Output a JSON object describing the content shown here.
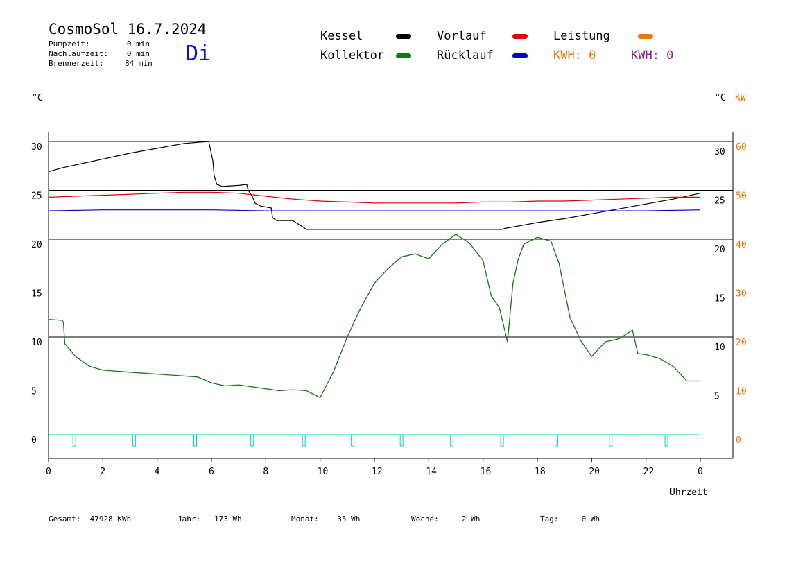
{
  "header": {
    "title": "CosmoSol 16.7.2024",
    "day": "Di",
    "stats": [
      {
        "label": "Pumpzeit:",
        "value": "0 min"
      },
      {
        "label": "Nachlaufzeit:",
        "value": "0 min"
      },
      {
        "label": "Brennerzeit:",
        "value": "84 min"
      }
    ]
  },
  "legend": {
    "kessel": "Kessel",
    "kollektor": "Kollektor",
    "vorlauf": "Vorlauf",
    "ruecklauf": "Rücklauf",
    "leistung": "Leistung",
    "kwh_orange": "KWH: 0",
    "kwh_purple": "KWH: 0"
  },
  "colors": {
    "kessel": "#000000",
    "kollektor": "#117711",
    "vorlauf": "#dd0000",
    "ruecklauf": "#0000cc",
    "leistung": "#ee7700",
    "pump": "#00cccc",
    "kwh_purple": "#882288"
  },
  "units": {
    "left": "°C",
    "right_c": "°C",
    "right_kw": "KW"
  },
  "footer": {
    "gesamt_label": "Gesamt:",
    "gesamt_value": "47928 KWh",
    "jahr_label": "Jahr:",
    "jahr_value": "173 Wh",
    "monat_label": "Monat:",
    "monat_value": "35 Wh",
    "woche_label": "Woche:",
    "woche_value": "2 Wh",
    "tag_label": "Tag:",
    "tag_value": "0 Wh"
  },
  "chart_data": {
    "type": "line",
    "xlabel": "Uhrzeit",
    "xlim": [
      0,
      24
    ],
    "x_ticks": [
      "0",
      "2",
      "4",
      "6",
      "8",
      "10",
      "12",
      "14",
      "16",
      "18",
      "20",
      "22",
      "0"
    ],
    "y_ticks_left": [
      "0",
      "5",
      "10",
      "15",
      "20",
      "25",
      "30"
    ],
    "y_ticks_right_c": [
      "0",
      "5",
      "10",
      "15",
      "20",
      "25",
      "30"
    ],
    "y_ticks_right_kw": [
      "0",
      "10",
      "20",
      "30",
      "40",
      "50",
      "60"
    ],
    "ylim": [
      -2.4,
      31
    ],
    "grid": true,
    "series": [
      {
        "name": "Kessel",
        "x": [
          0,
          0.5,
          1,
          2,
          3,
          4,
          5,
          5.9,
          6.05,
          6.1,
          6.2,
          6.4,
          7,
          7.3,
          7.35,
          7.5,
          7.6,
          7.8,
          8.2,
          8.25,
          8.4,
          9.0,
          9.5,
          9.6,
          12,
          14,
          16,
          16.7,
          16.8,
          17,
          18,
          19,
          20,
          21,
          22,
          23,
          24
        ],
        "y": [
          26.9,
          27.3,
          27.6,
          28.2,
          28.8,
          29.3,
          29.8,
          30.0,
          28,
          26.5,
          25.6,
          25.4,
          25.5,
          25.6,
          25,
          24.4,
          23.7,
          23.4,
          23.2,
          22.2,
          21.9,
          21.9,
          21.0,
          21.0,
          21.0,
          21.0,
          21.0,
          21.0,
          21.1,
          21.2,
          21.7,
          22.1,
          22.6,
          23.1,
          23.6,
          24.1,
          24.7
        ]
      },
      {
        "name": "Vorlauf",
        "x": [
          0,
          2,
          4,
          5,
          6,
          7,
          8,
          9,
          10,
          11,
          12,
          13,
          14,
          15,
          16,
          17,
          18,
          19,
          20,
          21,
          22,
          23,
          24
        ],
        "y": [
          24.3,
          24.5,
          24.7,
          24.8,
          24.8,
          24.7,
          24.4,
          24.1,
          23.9,
          23.8,
          23.7,
          23.7,
          23.7,
          23.7,
          23.8,
          23.8,
          23.9,
          23.9,
          24.0,
          24.1,
          24.2,
          24.3,
          24.3
        ]
      },
      {
        "name": "Rücklauf",
        "x": [
          0,
          2,
          4,
          6,
          8,
          10,
          12,
          14,
          16,
          18,
          20,
          22,
          24
        ],
        "y": [
          22.9,
          23.0,
          23.0,
          23.0,
          22.9,
          22.9,
          22.9,
          22.9,
          22.9,
          22.9,
          22.9,
          22.9,
          23.0
        ]
      },
      {
        "name": "Kollektor",
        "x": [
          0,
          0.5,
          0.55,
          0.6,
          1,
          1.5,
          2,
          3,
          4,
          5,
          5.5,
          6,
          6.5,
          7,
          7.5,
          8,
          8.5,
          9,
          9.5,
          10,
          10.5,
          11,
          11.5,
          12,
          12.5,
          13,
          13.5,
          14,
          14.5,
          15,
          15.5,
          16,
          16.3,
          16.6,
          16.9,
          17.1,
          17.3,
          17.5,
          18,
          18.5,
          18.8,
          19.2,
          19.6,
          20,
          20.5,
          21,
          21.5,
          21.7,
          22,
          22.5,
          23,
          23.5,
          24
        ],
        "y": [
          11.8,
          11.7,
          11.5,
          9.3,
          8.0,
          7.0,
          6.6,
          6.4,
          6.2,
          6.0,
          5.9,
          5.3,
          5.0,
          5.1,
          4.9,
          4.7,
          4.5,
          4.6,
          4.5,
          3.8,
          6.5,
          10.0,
          13.0,
          15.5,
          17.0,
          18.2,
          18.5,
          18.0,
          19.5,
          20.5,
          19.6,
          17.8,
          14.2,
          13.0,
          9.5,
          15.5,
          18.0,
          19.5,
          20.2,
          19.8,
          17.5,
          12.0,
          9.6,
          8.0,
          9.5,
          9.8,
          10.7,
          8.3,
          8.2,
          7.8,
          7.0,
          5.5,
          5.5
        ]
      },
      {
        "name": "Pumpe",
        "y_baseline": 0,
        "pulses_x": [
          0.95,
          3.15,
          5.4,
          7.5,
          9.4,
          11.2,
          13.0,
          14.85,
          16.7,
          18.7,
          20.7,
          22.75
        ]
      }
    ]
  }
}
